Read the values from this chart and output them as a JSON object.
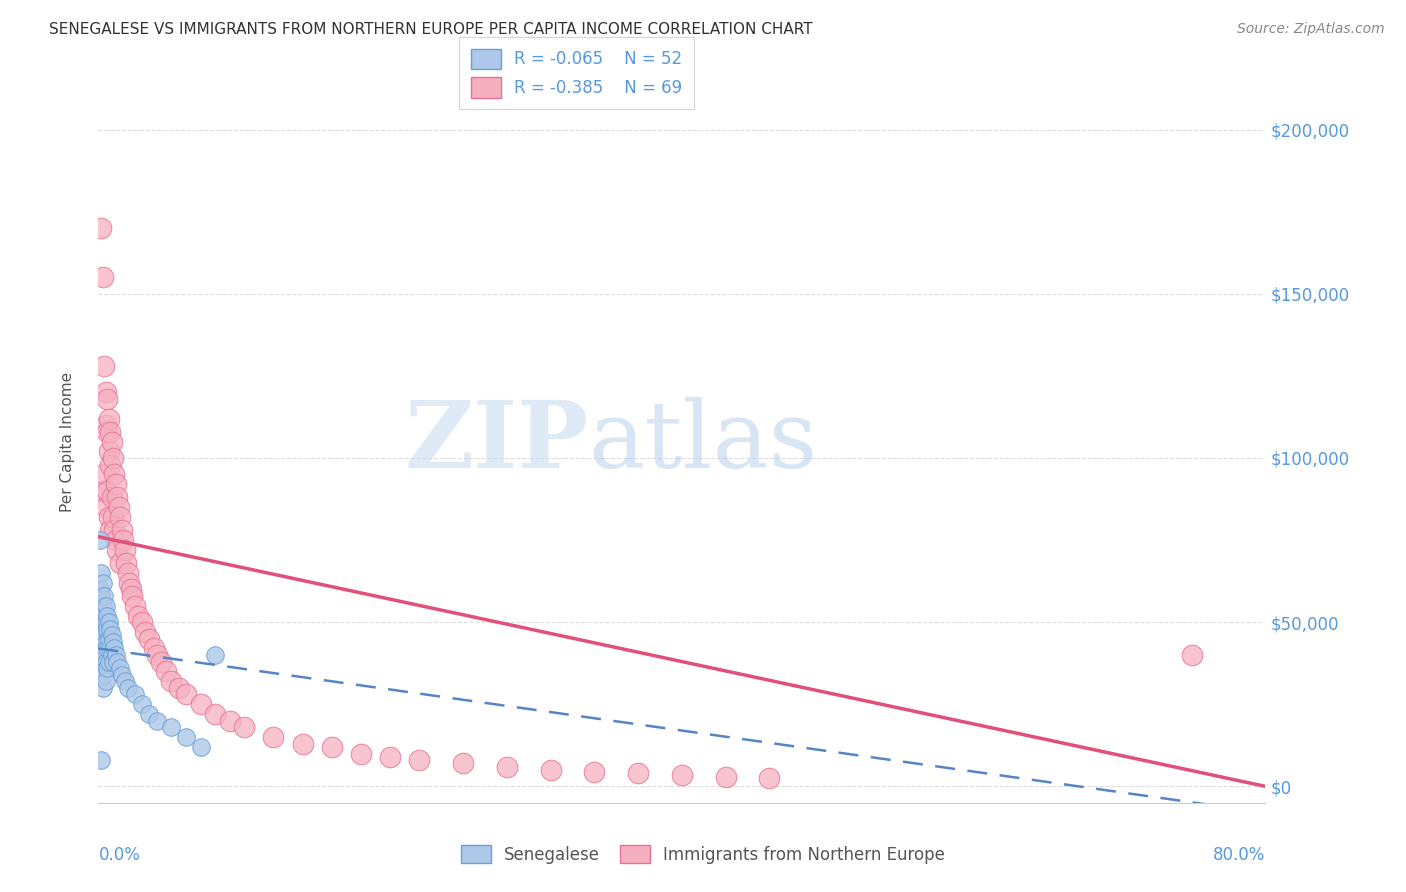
{
  "title": "SENEGALESE VS IMMIGRANTS FROM NORTHERN EUROPE PER CAPITA INCOME CORRELATION CHART",
  "source": "Source: ZipAtlas.com",
  "ylabel": "Per Capita Income",
  "ytick_labels": [
    "$0",
    "$50,000",
    "$100,000",
    "$150,000",
    "$200,000"
  ],
  "ytick_values": [
    0,
    50000,
    100000,
    150000,
    200000
  ],
  "xlim": [
    0.0,
    0.8
  ],
  "ylim": [
    -5000,
    215000
  ],
  "legend_blue_R": "R = -0.065",
  "legend_blue_N": "N = 52",
  "legend_pink_R": "R = -0.385",
  "legend_pink_N": "N = 69",
  "blue_color": "#adc8e8",
  "pink_color": "#f5b0c0",
  "blue_edge_color": "#6a9fd8",
  "pink_edge_color": "#e87090",
  "blue_line_color": "#5585c5",
  "pink_line_color": "#e0507a",
  "watermark_zip": "ZIP",
  "watermark_atlas": "atlas",
  "senegalese_x": [
    0.001,
    0.001,
    0.001,
    0.002,
    0.002,
    0.002,
    0.002,
    0.003,
    0.003,
    0.003,
    0.003,
    0.003,
    0.003,
    0.004,
    0.004,
    0.004,
    0.004,
    0.004,
    0.005,
    0.005,
    0.005,
    0.005,
    0.005,
    0.006,
    0.006,
    0.006,
    0.006,
    0.007,
    0.007,
    0.007,
    0.008,
    0.008,
    0.009,
    0.009,
    0.01,
    0.01,
    0.011,
    0.012,
    0.013,
    0.015,
    0.016,
    0.018,
    0.02,
    0.025,
    0.03,
    0.035,
    0.04,
    0.05,
    0.06,
    0.07,
    0.002,
    0.08
  ],
  "senegalese_y": [
    75000,
    60000,
    45000,
    65000,
    58000,
    50000,
    40000,
    62000,
    55000,
    48000,
    42000,
    36000,
    30000,
    58000,
    52000,
    46000,
    40000,
    34000,
    55000,
    50000,
    44000,
    38000,
    32000,
    52000,
    48000,
    42000,
    36000,
    50000,
    45000,
    38000,
    48000,
    42000,
    46000,
    40000,
    44000,
    38000,
    42000,
    40000,
    38000,
    36000,
    34000,
    32000,
    30000,
    28000,
    25000,
    22000,
    20000,
    18000,
    15000,
    12000,
    8000,
    40000
  ],
  "northern_europe_x": [
    0.002,
    0.003,
    0.003,
    0.004,
    0.004,
    0.005,
    0.005,
    0.005,
    0.006,
    0.006,
    0.006,
    0.007,
    0.007,
    0.007,
    0.008,
    0.008,
    0.008,
    0.009,
    0.009,
    0.01,
    0.01,
    0.011,
    0.011,
    0.012,
    0.012,
    0.013,
    0.013,
    0.014,
    0.015,
    0.015,
    0.016,
    0.017,
    0.018,
    0.019,
    0.02,
    0.021,
    0.022,
    0.023,
    0.025,
    0.027,
    0.03,
    0.032,
    0.035,
    0.038,
    0.04,
    0.043,
    0.046,
    0.05,
    0.055,
    0.06,
    0.07,
    0.08,
    0.09,
    0.1,
    0.12,
    0.14,
    0.16,
    0.18,
    0.2,
    0.22,
    0.25,
    0.28,
    0.31,
    0.34,
    0.37,
    0.4,
    0.43,
    0.46,
    0.75
  ],
  "northern_europe_y": [
    170000,
    155000,
    90000,
    128000,
    95000,
    120000,
    110000,
    85000,
    118000,
    108000,
    90000,
    112000,
    102000,
    82000,
    108000,
    98000,
    78000,
    105000,
    88000,
    100000,
    82000,
    95000,
    78000,
    92000,
    75000,
    88000,
    72000,
    85000,
    82000,
    68000,
    78000,
    75000,
    72000,
    68000,
    65000,
    62000,
    60000,
    58000,
    55000,
    52000,
    50000,
    47000,
    45000,
    42000,
    40000,
    38000,
    35000,
    32000,
    30000,
    28000,
    25000,
    22000,
    20000,
    18000,
    15000,
    13000,
    12000,
    10000,
    9000,
    8000,
    7000,
    6000,
    5000,
    4500,
    4000,
    3500,
    3000,
    2500,
    40000
  ],
  "pink_line_x0": 0.0,
  "pink_line_y0": 76000,
  "pink_line_x1": 0.8,
  "pink_line_y1": 0,
  "blue_line_x0": 0.0,
  "blue_line_y0": 42000,
  "blue_line_x1": 0.8,
  "blue_line_y1": -8000
}
